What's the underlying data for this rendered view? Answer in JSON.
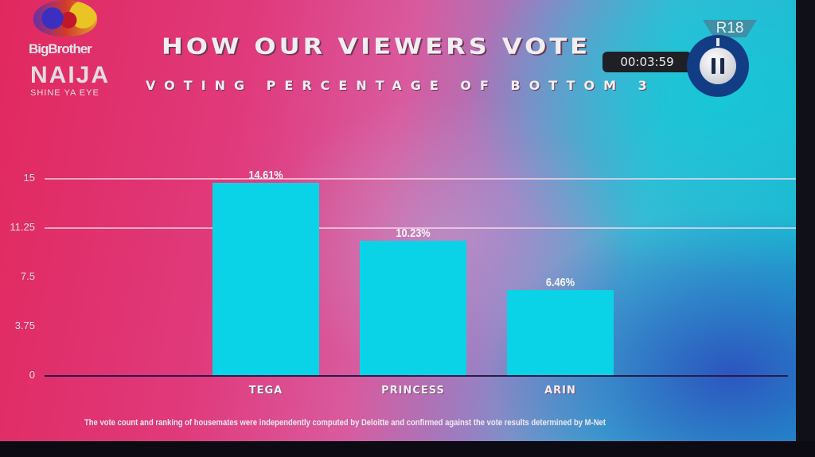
{
  "logo": {
    "line1": "BigBrother",
    "line2": "NAIJA",
    "line3": "SHINE YA EYE"
  },
  "header": {
    "title": "HOW OUR VIEWERS VOTE",
    "subtitle": "VOTING PERCENTAGE OF BOTTOM 3"
  },
  "overlay": {
    "rating": "R18",
    "timer": "00:03:59",
    "pause_icon": "pause-icon"
  },
  "footnote": "The vote count and ranking of housemates were independently computed by Deloitte and confirmed against the vote results determined by M-Net",
  "colors": {
    "bar": "#0ad3e8",
    "background_left": "#e1285e",
    "background_right": "#18b4d2"
  },
  "chart_data": {
    "type": "bar",
    "title": "HOW OUR VIEWERS VOTE",
    "subtitle": "VOTING PERCENTAGE OF BOTTOM 3",
    "categories": [
      "TEGA",
      "PRINCESS",
      "ARIN"
    ],
    "values": [
      14.61,
      10.23,
      6.46
    ],
    "value_labels": [
      "14.61%",
      "10.23%",
      "6.46%"
    ],
    "xlabel": "",
    "ylabel": "",
    "ylim": [
      0,
      15
    ],
    "yticks": [
      0,
      3.75,
      7.5,
      11.25,
      15
    ],
    "ytick_labels": [
      "0",
      "3.75",
      "7.5",
      "11.25",
      "15"
    ],
    "grid": true,
    "legend": "none",
    "annotation": "The vote count and ranking of housemates were independently computed by Deloitte and confirmed against the vote results determined by M-Net"
  }
}
